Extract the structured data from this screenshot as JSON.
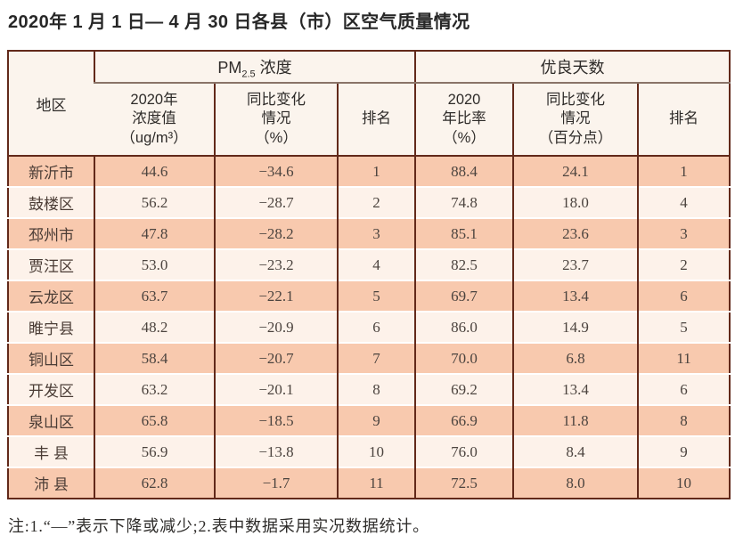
{
  "page": {
    "title": "2020年 1 月 1 日— 4 月 30 日各县（市）区空气质量情况",
    "note": "注:1.“—”表示下降或减少;2.表中数据采用实况数据统计。"
  },
  "colors": {
    "border_dark": "#62291a",
    "header_divider": "#8a7468",
    "row_salmon": "#f8c9ae",
    "row_light": "#fdf2ea",
    "header_bg": "#fbf4ed"
  },
  "table": {
    "header": {
      "region": "地区",
      "pm25": {
        "pm": "PM",
        "sub": "2.5",
        "rest": " 浓度"
      },
      "good_days": "优良天数",
      "sub_columns": [
        "2020年\n浓度值\n（ug/m³）",
        "同比变化\n情况\n（%）",
        "排名",
        "2020\n年比率\n（%）",
        "同比变化\n情况\n（百分点）",
        "排名"
      ]
    },
    "rows": [
      {
        "region": "新沂市",
        "values": [
          "44.6",
          "−34.6",
          "1",
          "88.4",
          "24.1",
          "1"
        ]
      },
      {
        "region": "鼓楼区",
        "values": [
          "56.2",
          "−28.7",
          "2",
          "74.8",
          "18.0",
          "4"
        ]
      },
      {
        "region": "邳州市",
        "values": [
          "47.8",
          "−28.2",
          "3",
          "85.1",
          "23.6",
          "3"
        ]
      },
      {
        "region": "贾汪区",
        "values": [
          "53.0",
          "−23.2",
          "4",
          "82.5",
          "23.7",
          "2"
        ]
      },
      {
        "region": "云龙区",
        "values": [
          "63.7",
          "−22.1",
          "5",
          "69.7",
          "13.4",
          "6"
        ]
      },
      {
        "region": "睢宁县",
        "values": [
          "48.2",
          "−20.9",
          "6",
          "86.0",
          "14.9",
          "5"
        ]
      },
      {
        "region": "铜山区",
        "values": [
          "58.4",
          "−20.7",
          "7",
          "70.0",
          "6.8",
          "11"
        ]
      },
      {
        "region": "开发区",
        "values": [
          "63.2",
          "−20.1",
          "8",
          "69.2",
          "13.4",
          "6"
        ]
      },
      {
        "region": "泉山区",
        "values": [
          "65.8",
          "−18.5",
          "9",
          "66.9",
          "11.8",
          "8"
        ]
      },
      {
        "region": "丰 县",
        "values": [
          "56.9",
          "−13.8",
          "10",
          "76.0",
          "8.4",
          "9"
        ]
      },
      {
        "region": "沛 县",
        "values": [
          "62.8",
          "−1.7",
          "11",
          "72.5",
          "8.0",
          "10"
        ]
      }
    ]
  }
}
